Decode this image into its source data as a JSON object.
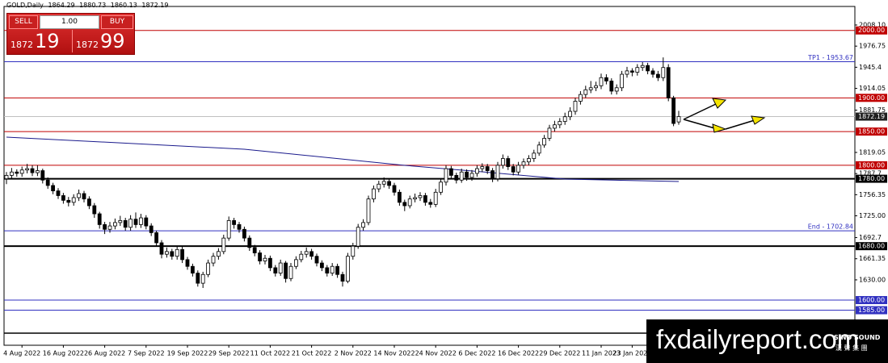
{
  "header": {
    "symbol": "GOLD,Daily",
    "ohlc": [
      "1864.29",
      "1880.73",
      "1860.13",
      "1872.19"
    ]
  },
  "trade_panel": {
    "sell": "SELL",
    "buy": "BUY",
    "lot": "1.00",
    "sell_big": "1872",
    "sell_small": "19",
    "buy_big": "1872",
    "buy_small": "99"
  },
  "watermark": {
    "site": "fxdailyreport.com",
    "brand": "SINO SOUND",
    "brand_cn": "漢 聲 集 團"
  },
  "chart_data": {
    "type": "candlestick",
    "up_color": "#ffffff",
    "down_color": "#000000",
    "outline_color": "#000000",
    "open": [
      1780,
      1785,
      1790,
      1788,
      1793,
      1795,
      1789,
      1792,
      1778,
      1770,
      1762,
      1755,
      1748,
      1745,
      1752,
      1758,
      1750,
      1740,
      1728,
      1712,
      1705,
      1710,
      1715,
      1718,
      1708,
      1720,
      1712,
      1722,
      1710,
      1700,
      1685,
      1668,
      1672,
      1665,
      1675,
      1660,
      1650,
      1640,
      1625,
      1638,
      1655,
      1665,
      1672,
      1692,
      1718,
      1712,
      1705,
      1692,
      1678,
      1670,
      1658,
      1662,
      1648,
      1640,
      1655,
      1632,
      1650,
      1660,
      1668,
      1672,
      1665,
      1655,
      1648,
      1640,
      1650,
      1638,
      1628,
      1665,
      1680,
      1708,
      1715,
      1750,
      1765,
      1772,
      1776,
      1770,
      1760,
      1745,
      1740,
      1750,
      1752,
      1755,
      1745,
      1742,
      1760,
      1775,
      1795,
      1785,
      1778,
      1790,
      1782,
      1788,
      1795,
      1798,
      1792,
      1780,
      1800,
      1810,
      1798,
      1790,
      1800,
      1805,
      1810,
      1818,
      1830,
      1840,
      1855,
      1860,
      1865,
      1872,
      1880,
      1895,
      1905,
      1912,
      1915,
      1918,
      1930,
      1925,
      1910,
      1915,
      1935,
      1940,
      1938,
      1945,
      1948,
      1940,
      1935,
      1930,
      1945,
      1900,
      1864.29
    ],
    "high": [
      1790,
      1796,
      1794,
      1798,
      1802,
      1800,
      1800,
      1795,
      1782,
      1774,
      1766,
      1759,
      1753,
      1757,
      1764,
      1762,
      1754,
      1744,
      1731,
      1716,
      1716,
      1721,
      1725,
      1722,
      1726,
      1730,
      1728,
      1726,
      1714,
      1703,
      1689,
      1678,
      1676,
      1680,
      1679,
      1664,
      1654,
      1644,
      1642,
      1660,
      1670,
      1677,
      1697,
      1724,
      1722,
      1716,
      1709,
      1696,
      1682,
      1674,
      1667,
      1666,
      1652,
      1660,
      1658,
      1655,
      1665,
      1673,
      1678,
      1676,
      1669,
      1659,
      1652,
      1655,
      1654,
      1642,
      1670,
      1685,
      1713,
      1720,
      1755,
      1770,
      1777,
      1782,
      1780,
      1774,
      1764,
      1749,
      1755,
      1758,
      1760,
      1759,
      1750,
      1765,
      1780,
      1800,
      1799,
      1789,
      1795,
      1794,
      1793,
      1800,
      1803,
      1802,
      1796,
      1805,
      1816,
      1814,
      1802,
      1805,
      1810,
      1815,
      1823,
      1835,
      1845,
      1860,
      1866,
      1870,
      1878,
      1886,
      1900,
      1910,
      1918,
      1925,
      1924,
      1936,
      1935,
      1929,
      1920,
      1940,
      1946,
      1944,
      1950,
      1953,
      1952,
      1944,
      1940,
      1960,
      1950,
      1903,
      1880.73
    ],
    "low": [
      1772,
      1780,
      1783,
      1783,
      1788,
      1784,
      1784,
      1773,
      1765,
      1757,
      1750,
      1743,
      1739,
      1740,
      1747,
      1745,
      1735,
      1722,
      1706,
      1698,
      1700,
      1705,
      1710,
      1703,
      1703,
      1707,
      1707,
      1705,
      1695,
      1680,
      1662,
      1663,
      1660,
      1660,
      1655,
      1645,
      1635,
      1620,
      1618,
      1634,
      1650,
      1660,
      1668,
      1688,
      1706,
      1700,
      1687,
      1673,
      1665,
      1653,
      1653,
      1643,
      1635,
      1636,
      1626,
      1628,
      1646,
      1656,
      1663,
      1660,
      1650,
      1643,
      1635,
      1636,
      1633,
      1620,
      1625,
      1660,
      1676,
      1703,
      1711,
      1745,
      1760,
      1767,
      1765,
      1755,
      1740,
      1732,
      1736,
      1745,
      1747,
      1740,
      1737,
      1738,
      1756,
      1770,
      1780,
      1773,
      1774,
      1777,
      1777,
      1783,
      1790,
      1787,
      1775,
      1776,
      1795,
      1793,
      1785,
      1786,
      1795,
      1800,
      1805,
      1814,
      1826,
      1836,
      1850,
      1855,
      1860,
      1867,
      1875,
      1890,
      1900,
      1907,
      1910,
      1913,
      1920,
      1905,
      1905,
      1910,
      1930,
      1932,
      1933,
      1940,
      1935,
      1930,
      1925,
      1925,
      1895,
      1858,
      1860.13
    ],
    "close": [
      1785,
      1790,
      1788,
      1793,
      1795,
      1789,
      1792,
      1778,
      1770,
      1762,
      1755,
      1748,
      1745,
      1752,
      1758,
      1750,
      1740,
      1728,
      1712,
      1705,
      1710,
      1715,
      1718,
      1708,
      1720,
      1712,
      1722,
      1710,
      1700,
      1685,
      1668,
      1672,
      1665,
      1675,
      1660,
      1650,
      1640,
      1625,
      1638,
      1655,
      1665,
      1672,
      1692,
      1718,
      1712,
      1705,
      1692,
      1678,
      1670,
      1658,
      1662,
      1648,
      1640,
      1655,
      1632,
      1650,
      1660,
      1668,
      1672,
      1665,
      1655,
      1648,
      1640,
      1650,
      1638,
      1628,
      1665,
      1680,
      1708,
      1715,
      1750,
      1765,
      1772,
      1776,
      1770,
      1760,
      1745,
      1740,
      1750,
      1752,
      1755,
      1745,
      1742,
      1760,
      1775,
      1795,
      1785,
      1778,
      1790,
      1782,
      1788,
      1795,
      1798,
      1792,
      1780,
      1800,
      1810,
      1798,
      1790,
      1800,
      1805,
      1810,
      1818,
      1830,
      1840,
      1855,
      1860,
      1865,
      1872,
      1880,
      1895,
      1905,
      1912,
      1915,
      1918,
      1930,
      1925,
      1910,
      1915,
      1935,
      1940,
      1938,
      1945,
      1948,
      1940,
      1935,
      1930,
      1945,
      1900,
      1862,
      1872.19
    ],
    "ylim": [
      1533,
      2035.6
    ],
    "yticks": [
      {
        "value": 2008.1,
        "label": "2008.10"
      },
      1976.75,
      1945.4,
      1914.05,
      1881.75,
      1819.05,
      1787.7,
      1756.35,
      {
        "value": 1725,
        "label": "1725.00"
      },
      1692.7,
      1661.35,
      {
        "value": 1630,
        "label": "1630.00"
      }
    ],
    "xticks": [
      {
        "value": 3,
        "label": "4 Aug 2022"
      },
      {
        "value": 11,
        "label": "16 Aug 2022"
      },
      {
        "value": 19,
        "label": "26 Aug 2022"
      },
      {
        "value": 27,
        "label": "7 Sep 2022"
      },
      {
        "value": 35,
        "label": "19 Sep 2022"
      },
      {
        "value": 43,
        "label": "29 Sep 2022"
      },
      {
        "value": 51,
        "label": "11 Oct 2022"
      },
      {
        "value": 59,
        "label": "21 Oct 2022"
      },
      {
        "value": 67,
        "label": "2 Nov 2022"
      },
      {
        "value": 75,
        "label": "14 Nov 2022"
      },
      {
        "value": 83,
        "label": "24 Nov 2022"
      },
      {
        "value": 91,
        "label": "6 Dec 2022"
      },
      {
        "value": 99,
        "label": "16 Dec 2022"
      },
      {
        "value": 107,
        "label": "29 Dec 2022"
      },
      {
        "value": 115,
        "label": "11 Jan 2023"
      },
      {
        "value": 121,
        "label": "23 Jan 2023"
      }
    ],
    "ma": {
      "color": "#1a1a8c",
      "x": [
        0,
        46,
        77,
        92,
        108,
        130
      ],
      "values": [
        1841.8,
        1823.8,
        1799.9,
        1790.3,
        1779.5,
        1775.9
      ]
    },
    "levels": [
      {
        "value": 2000,
        "label": "2000.00",
        "color": "#c00000",
        "style": "box"
      },
      {
        "value": 1953.67,
        "label": "TP1 - 1953.67",
        "color": "#3030c0",
        "style": "note"
      },
      {
        "value": 1900,
        "label": "1900.00",
        "color": "#c00000",
        "style": "box"
      },
      {
        "value": 1872.19,
        "label": "1872.19",
        "color": "#c0c0c0",
        "style": "box"
      },
      {
        "value": 1850,
        "label": "1850.00",
        "color": "#c00000",
        "style": "box"
      },
      {
        "value": 1800,
        "label": "1800.00",
        "color": "#c00000",
        "style": "box"
      },
      {
        "value": 1780,
        "label": "1780.00",
        "color": "#000000",
        "style": "box"
      },
      {
        "value": 1702.84,
        "label": "End - 1702.84",
        "color": "#3030c0",
        "style": "note"
      },
      {
        "value": 1680,
        "label": "1680.00",
        "color": "#000000",
        "style": "box"
      },
      {
        "value": 1600,
        "label": "1600.00",
        "color": "#3030c0",
        "style": "box"
      },
      {
        "value": 1585,
        "label": "1585.00",
        "color": "#3030c0",
        "style": "box"
      }
    ]
  }
}
